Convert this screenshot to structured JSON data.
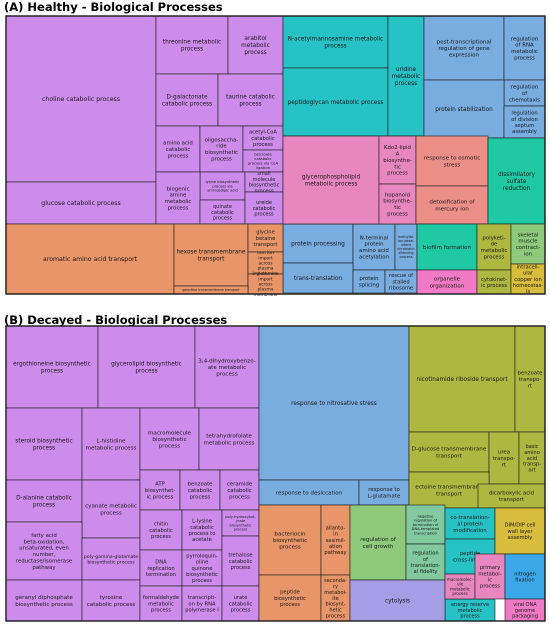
{
  "panels": [
    {
      "title": "(A) Healthy - Biological Processes"
    },
    {
      "title": "(B) Decayed - Biological Processes"
    }
  ],
  "chart_data": [
    {
      "type": "treemap",
      "title": "(A) Healthy - Biological Processes",
      "groups": [
        {
          "color": "#cd8ceb",
          "terms": [
            "choline catabolic process",
            "glucose catabolic process",
            "threonine metabolic process",
            "arabitol metabolic process",
            "D-galactonate catabolic process",
            "taurine catabolic process",
            "amino acid catabolic process",
            "oligosaccharide biosynthetic process",
            "acetyl-CoA catabolic process",
            "benzoate catabolic process via CoA ligation",
            "lysine biosynthetic process via aminoadipic acid",
            "small molecule biosynthetic process",
            "biogenic amine metabolic process",
            "quinate catabolic process",
            "ureide catabolic process"
          ]
        },
        {
          "color": "#26c2c5",
          "terms": [
            "N-acetylmannosamine metabolic process",
            "peptidoglycan metabolic process",
            "uridine metabolic process"
          ]
        },
        {
          "color": "#79acdf",
          "terms": [
            "post-transcriptional regulation of gene expression",
            "regulation of RNA metabolic process",
            "regulation of chemotaxis",
            "protein stabilization",
            "regulation of division septum assembly",
            "protein processing",
            "N-terminal protein amino acid acetylation",
            "methylation-dependent chromatin silencing process",
            "trans-translation",
            "protein splicing",
            "rescue of stalled ribosome"
          ]
        },
        {
          "color": "#e886bf",
          "terms": [
            "glycerophospholipid metabolic process",
            "Kdo2-lipid A biosynthetic process",
            "hopanoid biosynthetic process"
          ]
        },
        {
          "color": "#ec8f89",
          "terms": [
            "response to osmotic stress",
            "detoxification of mercury ion"
          ]
        },
        {
          "color": "#1fc9a4",
          "terms": [
            "dissimilatory sulfate reduction",
            "biofilm formation"
          ]
        },
        {
          "color": "#e8956a",
          "terms": [
            "aromatic amino acid transport",
            "hexose transmembrane transport",
            "glycine betaine transport",
            "iron ion import across plasma membrane",
            "L-glutamine import across plasma membrane",
            "galactitol transmembrane transport"
          ]
        },
        {
          "color": "#f07ac5",
          "terms": [
            "organelle organization"
          ]
        },
        {
          "color": "#aeb840",
          "terms": [
            "polyketide metabolic process",
            "cytokinetic process"
          ]
        },
        {
          "color": "#8fca7c",
          "terms": [
            "skeletal muscle contraction"
          ]
        },
        {
          "color": "#d8bc3b",
          "terms": [
            "intracellular copper ion homeostasis"
          ]
        }
      ]
    },
    {
      "type": "treemap",
      "title": "(B) Decayed - Biological Processes",
      "groups": [
        {
          "color": "#cd8ceb",
          "terms": [
            "ergothioneine biosynthetic process",
            "glycerolipid biosynthetic process",
            "3,4-dihydroxybenzoate metabolic process",
            "steroid biosynthetic process",
            "L-histidine metabolic process",
            "macromolecule biosynthetic process",
            "tetrahydrofolate metabolic process",
            "D-alanine catabolic process",
            "cyanate metabolic process",
            "ATP biosynthetic process",
            "benzoate catabolic process",
            "ceramide catabolic process",
            "fatty acid beta-oxidation, unsaturated, even number, reductase/isomerase pathway",
            "poly-gamma-glutamate biosynthetic process",
            "chitin catabolic process",
            "L-lysine catabolic process to acetate",
            "poly-hydroxybutyrate biosynthetic process",
            "geranyl diphosphate biosynthetic process",
            "tyrosine catabolic process",
            "DNA replication termination",
            "pyrroloquinoline quinone biosynthetic process",
            "trehalose catabolic process",
            "formaldehyde metabolic process",
            "transcription by RNA polymerase I",
            "urate catabolic process"
          ]
        },
        {
          "color": "#79acdf",
          "terms": [
            "response to nitrosative stress",
            "response to desiccation",
            "response to L-glutamate"
          ]
        },
        {
          "color": "#aeb840",
          "terms": [
            "nicotinamide riboside transport",
            "benzoate transport",
            "D-glucose transmembrane transport",
            "urea transport",
            "basic amino acid transport",
            "ectoine transmembrane transport",
            "dicarboxylic acid transport"
          ]
        },
        {
          "color": "#e8956a",
          "terms": [
            "bacteriocin biosynthetic process",
            "allantoin assimilation pathway",
            "peptide biosynthetic process",
            "secondary metabolite biosynthetic process"
          ]
        },
        {
          "color": "#8fca7c",
          "terms": [
            "regulation of cell growth"
          ]
        },
        {
          "color": "#82c9a0",
          "terms": [
            "negative regulation of termination of DNA-templated transcription",
            "regulation of translational fidelity"
          ]
        },
        {
          "color": "#26c2c5",
          "terms": [
            "co-translational protein modification",
            "peptide cross-linking",
            "energy reserve metabolic process"
          ]
        },
        {
          "color": "#d8bc3b",
          "terms": [
            "DIM/DIP cell wall layer assembly"
          ]
        },
        {
          "color": "#a59de6",
          "terms": [
            "cytolysis"
          ]
        },
        {
          "color": "#e886bf",
          "terms": [
            "macromolecule metabolic process",
            "primary metabolic process"
          ]
        },
        {
          "color": "#3aa8e8",
          "terms": [
            "nitrogen fixation"
          ]
        },
        {
          "color": "#f07ac5",
          "terms": [
            "viral DNA genome packaging"
          ]
        }
      ]
    }
  ]
}
